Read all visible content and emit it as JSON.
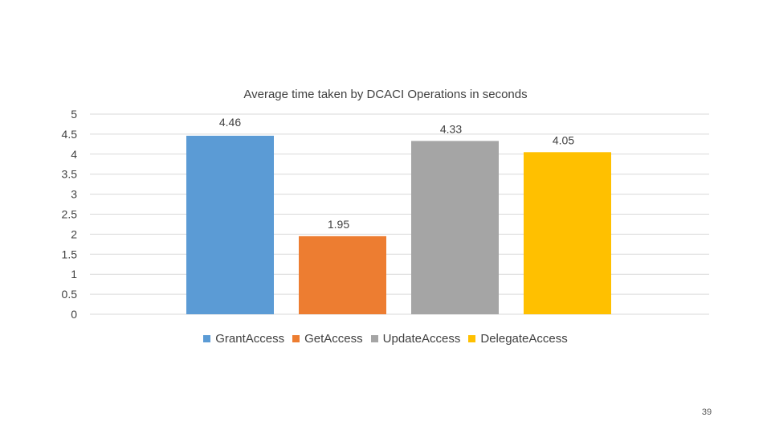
{
  "chart_data": {
    "type": "bar",
    "title": "Average time taken by DCACI Operations in seconds",
    "xlabel": "",
    "ylabel": "",
    "ylim": [
      0,
      5
    ],
    "yticks": [
      "0",
      "0.5",
      "1",
      "1.5",
      "2",
      "2.5",
      "3",
      "3.5",
      "4",
      "4.5",
      "5"
    ],
    "grid": true,
    "legend_position": "bottom",
    "series": [
      {
        "name": "GrantAccess",
        "values": [
          4.46
        ],
        "label": "4.46",
        "color": "#5B9BD5"
      },
      {
        "name": "GetAccess",
        "values": [
          1.95
        ],
        "label": "1.95",
        "color": "#ED7D31"
      },
      {
        "name": "UpdateAccess",
        "values": [
          4.33
        ],
        "label": "4.33",
        "color": "#A5A5A5"
      },
      {
        "name": "DelegateAccess",
        "values": [
          4.05
        ],
        "label": "4.05",
        "color": "#FFC000"
      }
    ]
  },
  "page_number": "39"
}
